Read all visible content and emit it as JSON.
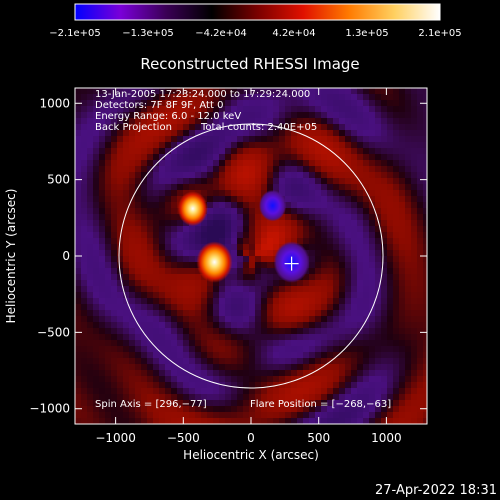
{
  "colorbar": {
    "tick_labels": [
      "−2.1e+05",
      "−1.3e+05",
      "−4.2e+04",
      "4.2e+04",
      "1.3e+05",
      "2.1e+05"
    ],
    "range": [
      -210000,
      210000
    ],
    "colormap": [
      "#0000ff",
      "#7a00d8",
      "#3a0055",
      "#000000",
      "#7a0000",
      "#e01000",
      "#ff7a00",
      "#ffd060",
      "#ffffff"
    ]
  },
  "chart_data": {
    "type": "heatmap",
    "title": "Reconstructed RHESSI Image",
    "xlabel": "Heliocentric X (arcsec)",
    "ylabel": "Heliocentric Y (arcsec)",
    "xlim": [
      -1300,
      1300
    ],
    "ylim": [
      -1100,
      1100
    ],
    "xticks": [
      -1000,
      -500,
      0,
      500,
      1000
    ],
    "yticks": [
      -1000,
      -500,
      0,
      500,
      1000
    ],
    "xtick_labels": [
      "−1000",
      "−500",
      "0",
      "500",
      "1000"
    ],
    "ytick_labels": [
      "−1000",
      "−500",
      "0",
      "500",
      "1000"
    ],
    "solar_disk": {
      "center": [
        0,
        0
      ],
      "radius_arcsec": 975
    },
    "sources": [
      {
        "x": -270,
        "y": -40,
        "value": 210000
      },
      {
        "x": -430,
        "y": 310,
        "value": 150000
      },
      {
        "x": 300,
        "y": -40,
        "value": -210000
      },
      {
        "x": 160,
        "y": 330,
        "value": -120000
      }
    ],
    "flare_marker": {
      "x": 300,
      "y": -50
    },
    "annotations": {
      "time": "13-Jan-2005 17:23:24.000 to 17:29:24.000",
      "detectors": "Detectors: 7F 8F 9F, Att 0",
      "energy": "Energy Range: 6.0 - 12.0 keV",
      "method": "Back Projection",
      "counts": "Total counts: 2.40E+05",
      "spin_axis": "Spin Axis = [296,−77]",
      "flare_position": "Flare Position = [−268,−63]"
    }
  },
  "footer": {
    "timestamp": "27-Apr-2022 18:31"
  }
}
